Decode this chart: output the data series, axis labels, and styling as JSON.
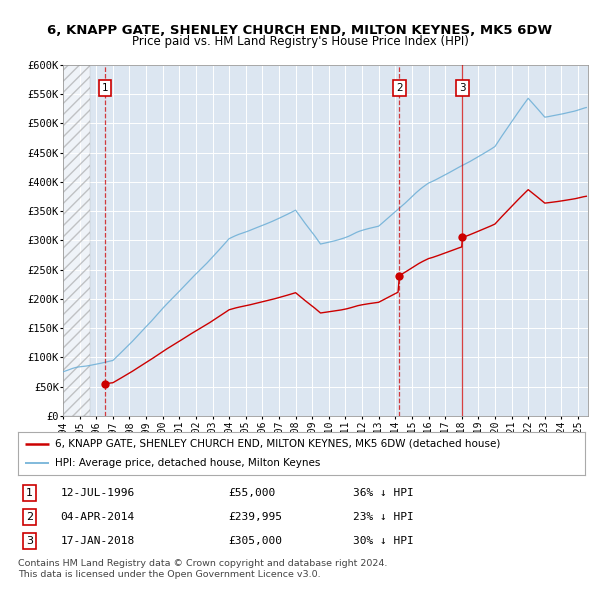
{
  "title": "6, KNAPP GATE, SHENLEY CHURCH END, MILTON KEYNES, MK5 6DW",
  "subtitle": "Price paid vs. HM Land Registry's House Price Index (HPI)",
  "ylim": [
    0,
    600000
  ],
  "yticks": [
    0,
    50000,
    100000,
    150000,
    200000,
    250000,
    300000,
    350000,
    400000,
    450000,
    500000,
    550000,
    600000
  ],
  "ytick_labels": [
    "£0",
    "£50K",
    "£100K",
    "£150K",
    "£200K",
    "£250K",
    "£300K",
    "£350K",
    "£400K",
    "£450K",
    "£500K",
    "£550K",
    "£600K"
  ],
  "xlim_start": 1994.0,
  "xlim_end": 2025.6,
  "hatch_area_end": 1995.6,
  "sale1_year": 1996.53,
  "sale1_price": 55000,
  "sale2_year": 2014.25,
  "sale2_price": 239995,
  "sale3_year": 2018.04,
  "sale3_price": 305000,
  "sales": [
    {
      "num": 1,
      "date": "12-JUL-1996",
      "price": 55000,
      "year": 1996.53,
      "price_str": "£55,000",
      "hpi_diff": "36% ↓ HPI"
    },
    {
      "num": 2,
      "date": "04-APR-2014",
      "price": 239995,
      "year": 2014.25,
      "price_str": "£239,995",
      "hpi_diff": "23% ↓ HPI"
    },
    {
      "num": 3,
      "date": "17-JAN-2018",
      "price": 305000,
      "year": 2018.04,
      "price_str": "£305,000",
      "hpi_diff": "30% ↓ HPI"
    }
  ],
  "legend_line1": "6, KNAPP GATE, SHENLEY CHURCH END, MILTON KEYNES, MK5 6DW (detached house)",
  "legend_line2": "HPI: Average price, detached house, Milton Keynes",
  "footnote1": "Contains HM Land Registry data © Crown copyright and database right 2024.",
  "footnote2": "This data is licensed under the Open Government Licence v3.0.",
  "line_color_red": "#cc0000",
  "line_color_blue": "#6baed6",
  "plot_bg_color": "#dce6f1",
  "xtick_labels": [
    "1994",
    "1995",
    "1996",
    "1997",
    "1998",
    "1999",
    "2000",
    "2001",
    "2002",
    "2003",
    "2004",
    "2005",
    "2006",
    "2007",
    "2008",
    "2009",
    "2010",
    "2011",
    "2012",
    "2013",
    "2014",
    "2015",
    "2016",
    "2017",
    "2018",
    "2019",
    "2020",
    "2021",
    "2022",
    "2023",
    "2024",
    "2025"
  ]
}
